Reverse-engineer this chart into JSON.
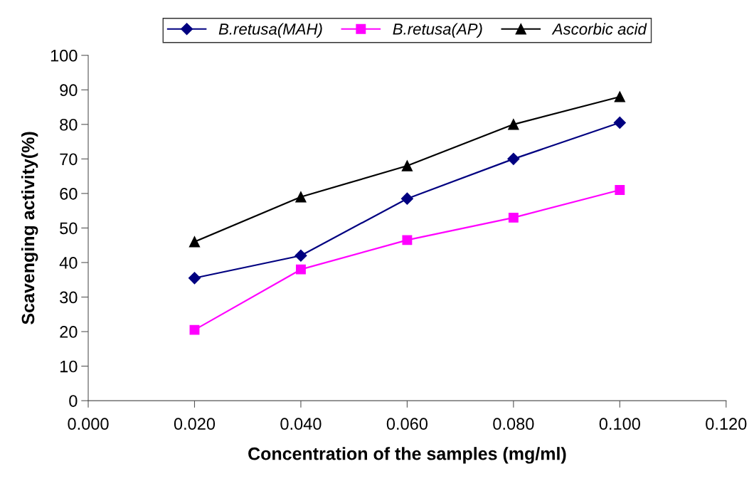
{
  "chart_data": {
    "type": "line",
    "xlabel": "Concentration of the samples (mg/ml)",
    "ylabel": "Scavenging activity(%)",
    "x": [
      0.02,
      0.04,
      0.06,
      0.08,
      0.1
    ],
    "series": [
      {
        "name": "B.retusa(MAH)",
        "color": "#000080",
        "marker": "diamond",
        "values": [
          35.5,
          42,
          58.5,
          70,
          80.5
        ]
      },
      {
        "name": "B.retusa(AP)",
        "color": "#ff00ff",
        "marker": "square",
        "values": [
          20.5,
          38,
          46.5,
          53,
          61
        ]
      },
      {
        "name": "Ascorbic acid",
        "color": "#000000",
        "marker": "triangle",
        "values": [
          46,
          59,
          68,
          80,
          88
        ]
      }
    ],
    "xlim": [
      0,
      0.12
    ],
    "xticks": [
      {
        "value": 0,
        "label": "0.000"
      },
      {
        "value": 0.02,
        "label": "0.020"
      },
      {
        "value": 0.04,
        "label": "0.040"
      },
      {
        "value": 0.06,
        "label": "0.060"
      },
      {
        "value": 0.08,
        "label": "0.080"
      },
      {
        "value": 0.1,
        "label": "0.100"
      },
      {
        "value": 0.12,
        "label": "0.120"
      }
    ],
    "ylim": [
      0,
      100
    ],
    "yticks": [
      0,
      10,
      20,
      30,
      40,
      50,
      60,
      70,
      80,
      90,
      100
    ],
    "grid": false,
    "legend": "top",
    "line_style": "solid"
  }
}
